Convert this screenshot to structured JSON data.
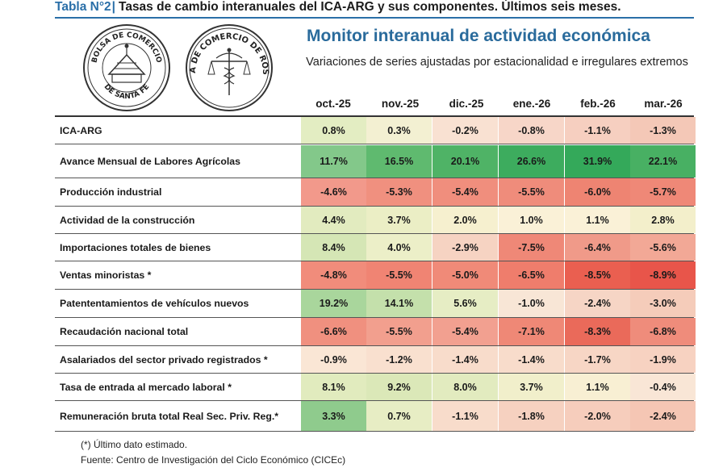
{
  "header": {
    "table_number": "Tabla N°2",
    "table_title": "Tasas de cambio interanuales del ICA-ARG y sus componentes. Últimos seis meses."
  },
  "logos": [
    {
      "name": "bolsa-de-comercio-santa-fe-seal",
      "text": "BOLSA DE COMERCIO DE SANTA FE"
    },
    {
      "name": "bolsa-de-comercio-rosario-seal",
      "text": "BOLSA DE COMERCIO DE ROSARIO"
    }
  ],
  "monitor": {
    "title": "Monitor interanual de actividad económica",
    "subtitle": "Variaciones de series ajustadas por estacionalidad e irregulares extremos"
  },
  "table": {
    "columns": [
      "oct.-25",
      "nov.-25",
      "dic.-25",
      "ene.-26",
      "feb.-26",
      "mar.-26"
    ],
    "rows": [
      {
        "label": "ICA-ARG",
        "values": [
          "0.8%",
          "0.3%",
          "-0.2%",
          "-0.8%",
          "-1.1%",
          "-1.3%"
        ],
        "colors": [
          "#e3edc2",
          "#f3f0d2",
          "#f9e1d2",
          "#f7d6c8",
          "#f6cfc0",
          "#f4c8b7"
        ]
      },
      {
        "label": "Avance Mensual de Labores Agrícolas",
        "values": [
          "11.7%",
          "16.5%",
          "20.1%",
          "26.6%",
          "31.9%",
          "22.1%"
        ],
        "colors": [
          "#83c88a",
          "#5fba6f",
          "#4fb366",
          "#3dac5e",
          "#34a95a",
          "#48b063"
        ]
      },
      {
        "label": "Producción industrial",
        "values": [
          "-4.6%",
          "-5.3%",
          "-5.4%",
          "-5.5%",
          "-6.0%",
          "-5.7%"
        ],
        "colors": [
          "#f2998b",
          "#f0907f",
          "#f08e7d",
          "#ef8c7b",
          "#ee8472",
          "#ef8877"
        ]
      },
      {
        "label": "Actividad de la construcción",
        "values": [
          "4.4%",
          "3.7%",
          "2.0%",
          "1.0%",
          "1.1%",
          "2.8%"
        ],
        "colors": [
          "#e2ebbf",
          "#ebeec5",
          "#f6f0cf",
          "#faf1d7",
          "#faf1d7",
          "#f3efcb"
        ]
      },
      {
        "label": "Importaciones totales de bienes",
        "values": [
          "8.4%",
          "4.0%",
          "-2.9%",
          "-7.5%",
          "-6.4%",
          "-5.6%"
        ],
        "colors": [
          "#d5e6b5",
          "#ecefc8",
          "#f6d3c2",
          "#ef8877",
          "#f09a89",
          "#f2a896"
        ]
      },
      {
        "label": "Ventas minoristas *",
        "values": [
          "-4.8%",
          "-5.5%",
          "-5.0%",
          "-6.5%",
          "-8.5%",
          "-8.9%"
        ],
        "colors": [
          "#f18c7b",
          "#f08473",
          "#f08a78",
          "#ef7d6c",
          "#ea5f50",
          "#e8554a"
        ]
      },
      {
        "label": "Patententamientos de vehículos nuevos",
        "values": [
          "19.2%",
          "14.1%",
          "5.6%",
          "-1.0%",
          "-2.4%",
          "-3.0%"
        ],
        "colors": [
          "#a9d69c",
          "#c4e0ab",
          "#e6edc4",
          "#f8e6d6",
          "#f6d5c5",
          "#f5ccba"
        ]
      },
      {
        "label": "Recaudación nacional total",
        "values": [
          "-6.6%",
          "-5.5%",
          "-5.4%",
          "-7.1%",
          "-8.3%",
          "-6.8%"
        ],
        "colors": [
          "#f0907f",
          "#f29f8e",
          "#f2a090",
          "#ef8876",
          "#ea6a5a",
          "#ef8c7b"
        ]
      },
      {
        "label": "Asalariados del sector privado registrados *",
        "values": [
          "-0.9%",
          "-1.2%",
          "-1.4%",
          "-1.4%",
          "-1.7%",
          "-1.9%"
        ],
        "colors": [
          "#fae6d5",
          "#f9e0cf",
          "#f8dccb",
          "#f8dccb",
          "#f7d6c5",
          "#f7d2c1"
        ]
      },
      {
        "label": "Tasa de entrada al mercado laboral *",
        "values": [
          "8.1%",
          "9.2%",
          "8.0%",
          "3.7%",
          "1.1%",
          "-0.4%"
        ],
        "colors": [
          "#e1ebbe",
          "#dbe8b8",
          "#e2ebbf",
          "#f1efcb",
          "#f8efd3",
          "#f9e6d6"
        ]
      },
      {
        "label": "Remuneración bruta total Real Sec. Priv. Reg.*",
        "values": [
          "3.3%",
          "0.7%",
          "-1.1%",
          "-1.8%",
          "-2.0%",
          "-2.4%"
        ],
        "colors": [
          "#8fcb8d",
          "#e7edc4",
          "#f8dccb",
          "#f6d1c0",
          "#f6cdbc",
          "#f5c6b4"
        ]
      }
    ]
  },
  "footnotes": {
    "note": "(*) Último dato estimado.",
    "source": "Fuente: Centro de Investigación del Ciclo Económico (CICEc)"
  }
}
